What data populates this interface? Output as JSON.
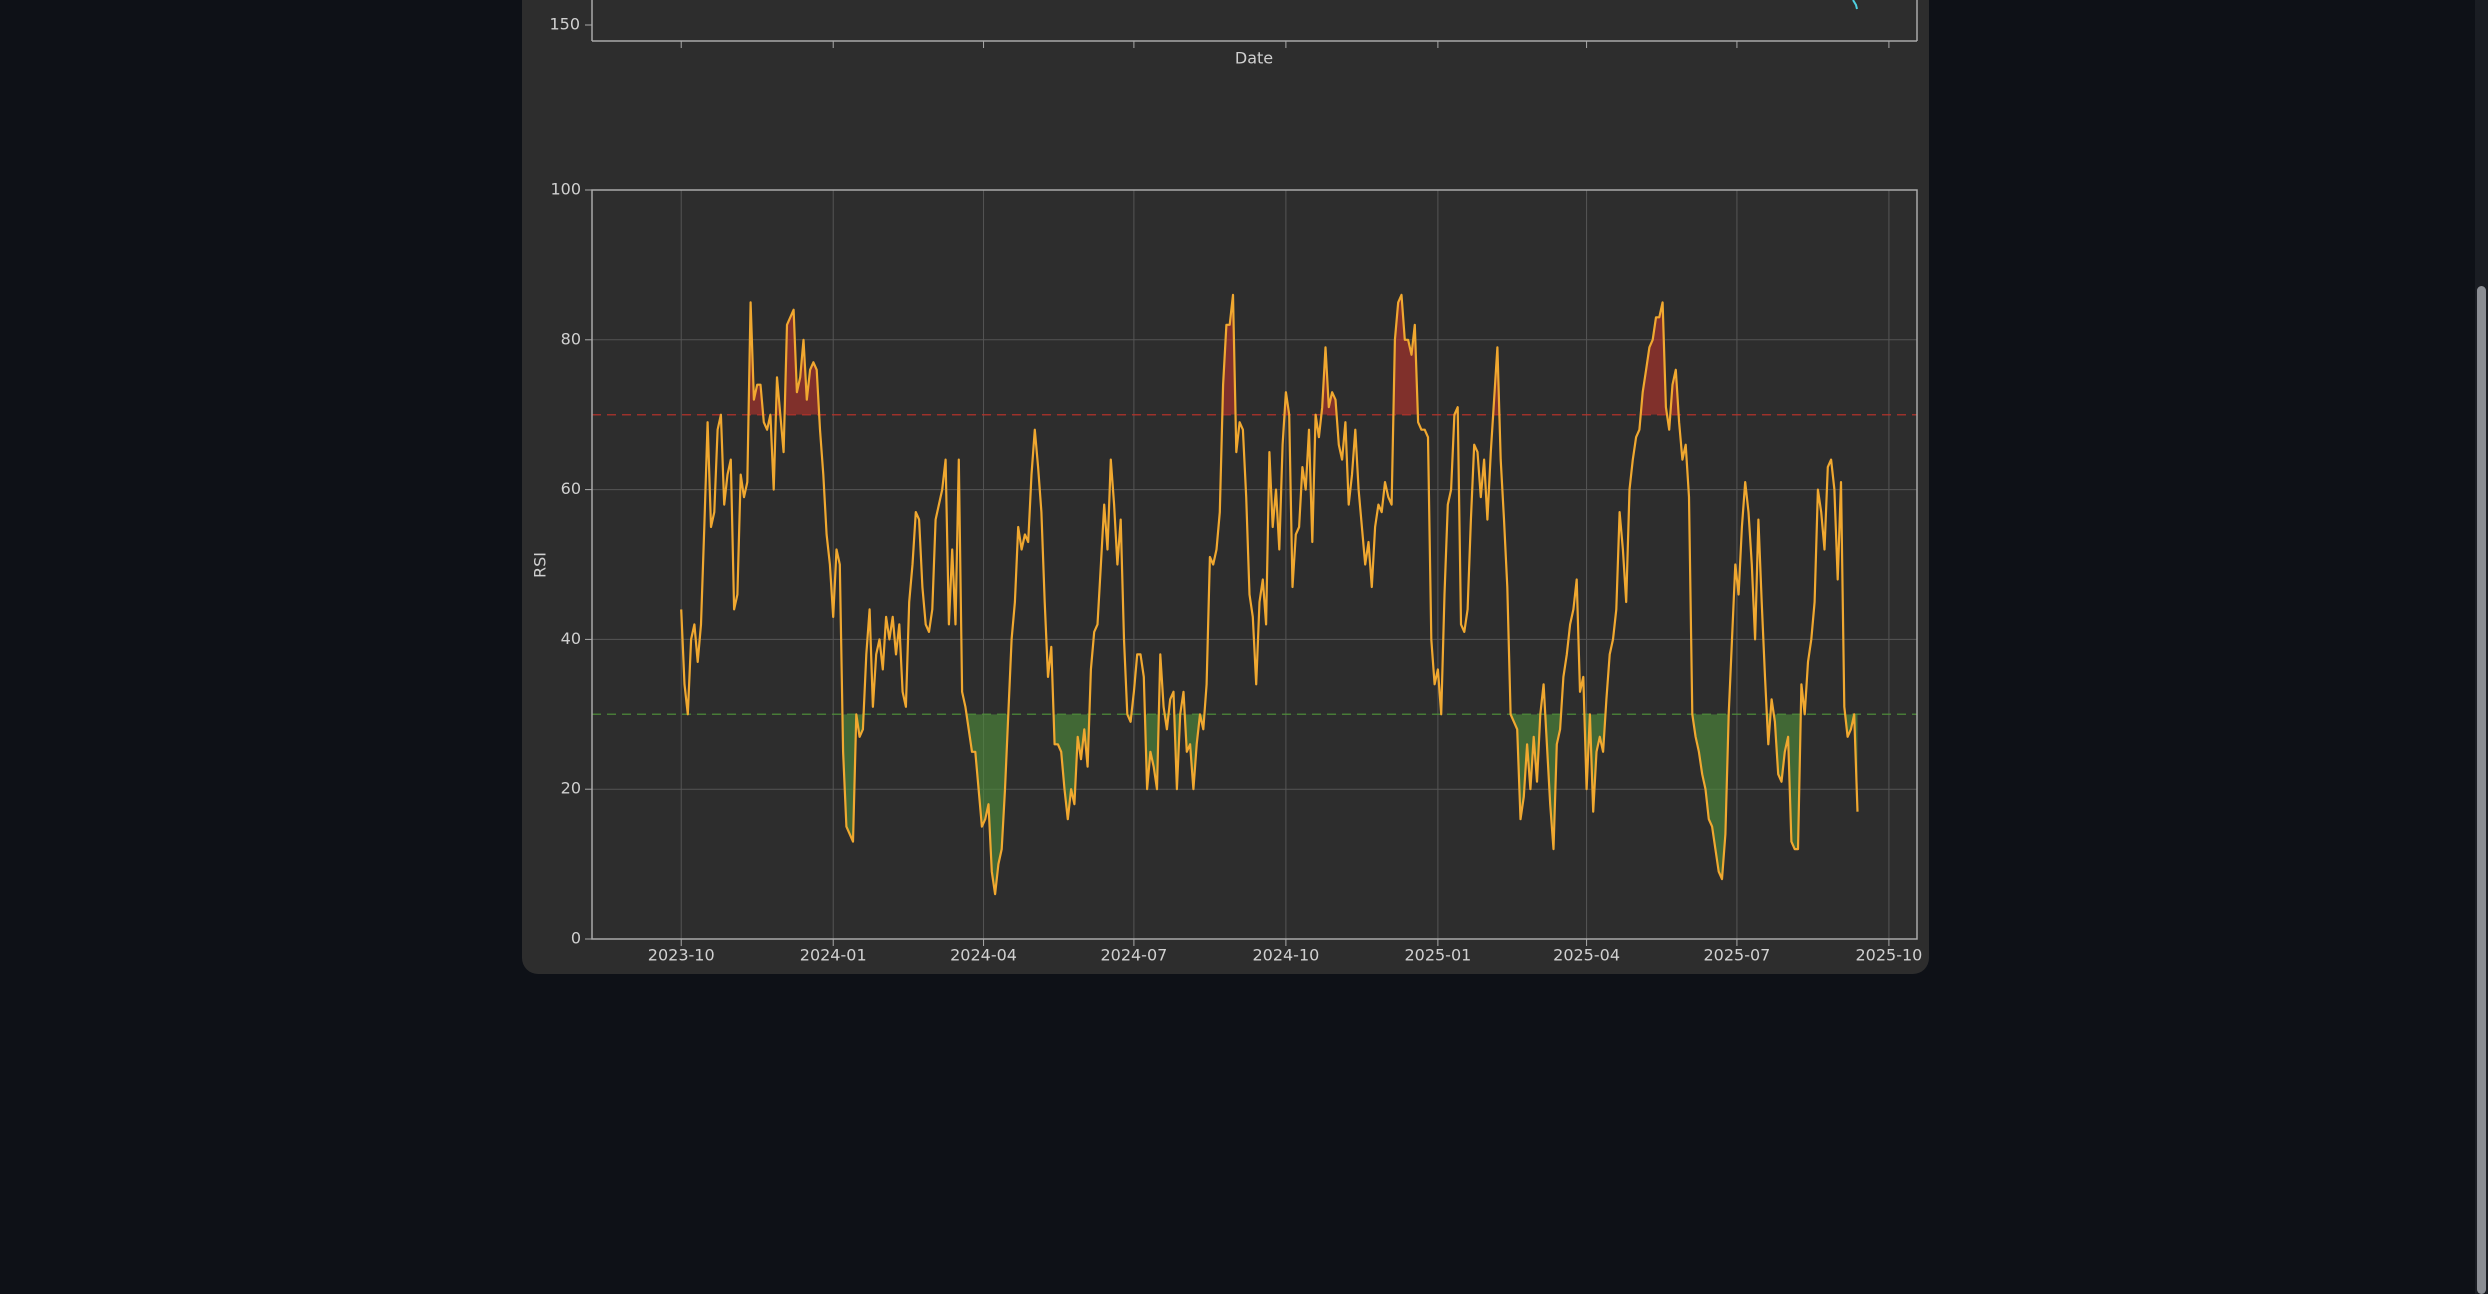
{
  "chart_data": [
    {
      "type": "line",
      "xlabel": "Date",
      "yticks": [
        150
      ]
    },
    {
      "type": "line",
      "ylabel": "RSI",
      "xlim": [
        "2023-08-08",
        "2025-10-18"
      ],
      "xticks": [
        "2023-10",
        "2024-01",
        "2024-04",
        "2024-07",
        "2024-10",
        "2025-01",
        "2025-04",
        "2025-07",
        "2025-10"
      ],
      "ylim": [
        0,
        100
      ],
      "yticks": [
        0,
        20,
        40,
        60,
        80,
        100
      ],
      "grid": true,
      "color": "#f0a830",
      "overbought": {
        "value": 70,
        "color": "#b8322a"
      },
      "oversold": {
        "value": 30,
        "color": "#4f8f3a"
      },
      "x": [
        "2023-10-01",
        "2023-10-03",
        "2023-10-05",
        "2023-10-07",
        "2023-10-09",
        "2023-10-11",
        "2023-10-13",
        "2023-10-15",
        "2023-10-17",
        "2023-10-19",
        "2023-10-21",
        "2023-10-23",
        "2023-10-25",
        "2023-10-27",
        "2023-10-29",
        "2023-10-31",
        "2023-11-02",
        "2023-11-04",
        "2023-11-06",
        "2023-11-08",
        "2023-11-10",
        "2023-11-12",
        "2023-11-14",
        "2023-11-16",
        "2023-11-18",
        "2023-11-20",
        "2023-11-22",
        "2023-11-24",
        "2023-11-26",
        "2023-11-28",
        "2023-11-30",
        "2023-12-02",
        "2023-12-04",
        "2023-12-06",
        "2023-12-08",
        "2023-12-10",
        "2023-12-12",
        "2023-12-14",
        "2023-12-16",
        "2023-12-18",
        "2023-12-20",
        "2023-12-22",
        "2023-12-24",
        "2023-12-26",
        "2023-12-28",
        "2023-12-30",
        "2024-01-01",
        "2024-01-03",
        "2024-01-05",
        "2024-01-07",
        "2024-01-09",
        "2024-01-11",
        "2024-01-13",
        "2024-01-15",
        "2024-01-17",
        "2024-01-19",
        "2024-01-21",
        "2024-01-23",
        "2024-01-25",
        "2024-01-27",
        "2024-01-29",
        "2024-01-31",
        "2024-02-02",
        "2024-02-04",
        "2024-02-06",
        "2024-02-08",
        "2024-02-10",
        "2024-02-12",
        "2024-02-14",
        "2024-02-16",
        "2024-02-18",
        "2024-02-20",
        "2024-02-22",
        "2024-02-24",
        "2024-02-26",
        "2024-02-28",
        "2024-03-01",
        "2024-03-03",
        "2024-03-05",
        "2024-03-07",
        "2024-03-09",
        "2024-03-11",
        "2024-03-13",
        "2024-03-15",
        "2024-03-17",
        "2024-03-19",
        "2024-03-21",
        "2024-03-23",
        "2024-03-25",
        "2024-03-27",
        "2024-03-29",
        "2024-03-31",
        "2024-04-02",
        "2024-04-04",
        "2024-04-06",
        "2024-04-08",
        "2024-04-10",
        "2024-04-12",
        "2024-04-14",
        "2024-04-16",
        "2024-04-18",
        "2024-04-20",
        "2024-04-22",
        "2024-04-24",
        "2024-04-26",
        "2024-04-28",
        "2024-04-30",
        "2024-05-02",
        "2024-05-04",
        "2024-05-06",
        "2024-05-08",
        "2024-05-10",
        "2024-05-12",
        "2024-05-14",
        "2024-05-16",
        "2024-05-18",
        "2024-05-20",
        "2024-05-22",
        "2024-05-24",
        "2024-05-26",
        "2024-05-28",
        "2024-05-30",
        "2024-06-01",
        "2024-06-03",
        "2024-06-05",
        "2024-06-07",
        "2024-06-09",
        "2024-06-11",
        "2024-06-13",
        "2024-06-15",
        "2024-06-17",
        "2024-06-19",
        "2024-06-21",
        "2024-06-23",
        "2024-06-25",
        "2024-06-27",
        "2024-06-29",
        "2024-07-01",
        "2024-07-03",
        "2024-07-05",
        "2024-07-07",
        "2024-07-09",
        "2024-07-11",
        "2024-07-13",
        "2024-07-15",
        "2024-07-17",
        "2024-07-19",
        "2024-07-21",
        "2024-07-23",
        "2024-07-25",
        "2024-07-27",
        "2024-07-29",
        "2024-07-31",
        "2024-08-02",
        "2024-08-04",
        "2024-08-06",
        "2024-08-08",
        "2024-08-10",
        "2024-08-12",
        "2024-08-14",
        "2024-08-16",
        "2024-08-18",
        "2024-08-20",
        "2024-08-22",
        "2024-08-24",
        "2024-08-26",
        "2024-08-28",
        "2024-08-30",
        "2024-09-01",
        "2024-09-03",
        "2024-09-05",
        "2024-09-07",
        "2024-09-09",
        "2024-09-11",
        "2024-09-13",
        "2024-09-15",
        "2024-09-17",
        "2024-09-19",
        "2024-09-21",
        "2024-09-23",
        "2024-09-25",
        "2024-09-27",
        "2024-09-29",
        "2024-10-01",
        "2024-10-03",
        "2024-10-05",
        "2024-10-07",
        "2024-10-09",
        "2024-10-11",
        "2024-10-13",
        "2024-10-15",
        "2024-10-17",
        "2024-10-19",
        "2024-10-21",
        "2024-10-23",
        "2024-10-25",
        "2024-10-27",
        "2024-10-29",
        "2024-10-31",
        "2024-11-02",
        "2024-11-04",
        "2024-11-06",
        "2024-11-08",
        "2024-11-10",
        "2024-11-12",
        "2024-11-14",
        "2024-11-16",
        "2024-11-18",
        "2024-11-20",
        "2024-11-22",
        "2024-11-24",
        "2024-11-26",
        "2024-11-28",
        "2024-11-30",
        "2024-12-02",
        "2024-12-04",
        "2024-12-06",
        "2024-12-08",
        "2024-12-10",
        "2024-12-12",
        "2024-12-14",
        "2024-12-16",
        "2024-12-18",
        "2024-12-20",
        "2024-12-22",
        "2024-12-24",
        "2024-12-26",
        "2024-12-28",
        "2024-12-30",
        "2025-01-01",
        "2025-01-03",
        "2025-01-05",
        "2025-01-07",
        "2025-01-09",
        "2025-01-11",
        "2025-01-13",
        "2025-01-15",
        "2025-01-17",
        "2025-01-19",
        "2025-01-21",
        "2025-01-23",
        "2025-01-25",
        "2025-01-27",
        "2025-01-29",
        "2025-01-31",
        "2025-02-02",
        "2025-02-04",
        "2025-02-06",
        "2025-02-08",
        "2025-02-10",
        "2025-02-12",
        "2025-02-14",
        "2025-02-16",
        "2025-02-18",
        "2025-02-20",
        "2025-02-22",
        "2025-02-24",
        "2025-02-26",
        "2025-02-28",
        "2025-03-02",
        "2025-03-04",
        "2025-03-06",
        "2025-03-08",
        "2025-03-10",
        "2025-03-12",
        "2025-03-14",
        "2025-03-16",
        "2025-03-18",
        "2025-03-20",
        "2025-03-22",
        "2025-03-24",
        "2025-03-26",
        "2025-03-28",
        "2025-03-30",
        "2025-04-01",
        "2025-04-03",
        "2025-04-05",
        "2025-04-07",
        "2025-04-09",
        "2025-04-11",
        "2025-04-13",
        "2025-04-15",
        "2025-04-17",
        "2025-04-19",
        "2025-04-21",
        "2025-04-23",
        "2025-04-25",
        "2025-04-27",
        "2025-04-29",
        "2025-05-01",
        "2025-05-03",
        "2025-05-05",
        "2025-05-07",
        "2025-05-09",
        "2025-05-11",
        "2025-05-13",
        "2025-05-15",
        "2025-05-17",
        "2025-05-19",
        "2025-05-21",
        "2025-05-23",
        "2025-05-25",
        "2025-05-27",
        "2025-05-29",
        "2025-05-31",
        "2025-06-02",
        "2025-06-04",
        "2025-06-06",
        "2025-06-08",
        "2025-06-10",
        "2025-06-12",
        "2025-06-14",
        "2025-06-16",
        "2025-06-18",
        "2025-06-20",
        "2025-06-22",
        "2025-06-24",
        "2025-06-26",
        "2025-06-28",
        "2025-06-30",
        "2025-07-02",
        "2025-07-04",
        "2025-07-06",
        "2025-07-08",
        "2025-07-10",
        "2025-07-12",
        "2025-07-14",
        "2025-07-16",
        "2025-07-18",
        "2025-07-20",
        "2025-07-22",
        "2025-07-24",
        "2025-07-26",
        "2025-07-28",
        "2025-07-30",
        "2025-08-01",
        "2025-08-03",
        "2025-08-05",
        "2025-08-07",
        "2025-08-09",
        "2025-08-11",
        "2025-08-13",
        "2025-08-15",
        "2025-08-17",
        "2025-08-19",
        "2025-08-21",
        "2025-08-23",
        "2025-08-25",
        "2025-08-27",
        "2025-08-29",
        "2025-08-31",
        "2025-09-02",
        "2025-09-04",
        "2025-09-06",
        "2025-09-08",
        "2025-09-10",
        "2025-09-12"
      ],
      "values": [
        44,
        34,
        30,
        40,
        42,
        37,
        42,
        55,
        69,
        55,
        57,
        68,
        70,
        58,
        62,
        64,
        44,
        46,
        62,
        59,
        61,
        85,
        72,
        74,
        74,
        69,
        68,
        70,
        60,
        75,
        70,
        65,
        82,
        83,
        84,
        73,
        75,
        80,
        72,
        76,
        77,
        76,
        68,
        62,
        54,
        50,
        43,
        52,
        50,
        25,
        15,
        14,
        13,
        30,
        27,
        28,
        38,
        44,
        31,
        38,
        40,
        36,
        43,
        40,
        43,
        38,
        42,
        33,
        31,
        45,
        50,
        57,
        56,
        47,
        42,
        41,
        44,
        56,
        58,
        60,
        64,
        42,
        52,
        42,
        64,
        33,
        31,
        28,
        25,
        25,
        20,
        15,
        16,
        18,
        9,
        6,
        10,
        12,
        20,
        30,
        40,
        45,
        55,
        52,
        54,
        53,
        62,
        68,
        63,
        57,
        45,
        35,
        39,
        26,
        26,
        25,
        20,
        16,
        20,
        18,
        27,
        24,
        28,
        23,
        36,
        41,
        42,
        50,
        58,
        52,
        64,
        58,
        50,
        56,
        40,
        30,
        29,
        33,
        38,
        38,
        35,
        20,
        25,
        23,
        20,
        38,
        31,
        28,
        32,
        33,
        20,
        30,
        33,
        25,
        26,
        20,
        26,
        30,
        28,
        34,
        51,
        50,
        52,
        57,
        74,
        82,
        82,
        86,
        65,
        69,
        68,
        59,
        46,
        43,
        34,
        45,
        48,
        42,
        65,
        55,
        60,
        52,
        66,
        73,
        70,
        47,
        54,
        55,
        63,
        60,
        68,
        53,
        70,
        67,
        71,
        79,
        71,
        73,
        72,
        66,
        64,
        69,
        58,
        62,
        68,
        60,
        55,
        50,
        53,
        47,
        55,
        58,
        57,
        61,
        59,
        58,
        80,
        85,
        86,
        80,
        80,
        78,
        82,
        69,
        68,
        68,
        67,
        40,
        34,
        36,
        30,
        46,
        58,
        60,
        70,
        71,
        42,
        41,
        44,
        56,
        66,
        65,
        59,
        64,
        56,
        65,
        72,
        79,
        64,
        56,
        47,
        30,
        29,
        28,
        16,
        19,
        26,
        20,
        27,
        21,
        30,
        34,
        26,
        18,
        12,
        26,
        28,
        35,
        38,
        42,
        44,
        48,
        33,
        35,
        20,
        30,
        17,
        25,
        27,
        25,
        32,
        38,
        40,
        44,
        57,
        52,
        45,
        60,
        64,
        67,
        68,
        73,
        76,
        79,
        80,
        83,
        83,
        85,
        71,
        68,
        74,
        76,
        69,
        64,
        66,
        59,
        30,
        27,
        25,
        22,
        20,
        16,
        15,
        12,
        9,
        8,
        14,
        30,
        40,
        50,
        46,
        55,
        61,
        57,
        50,
        40,
        56,
        45,
        35,
        26,
        32,
        29,
        22,
        21,
        25,
        27,
        13,
        12,
        12,
        34,
        30,
        37,
        40,
        45,
        60,
        57,
        52,
        63,
        64,
        60,
        48,
        61,
        31,
        27,
        28,
        30,
        17
      ]
    }
  ]
}
